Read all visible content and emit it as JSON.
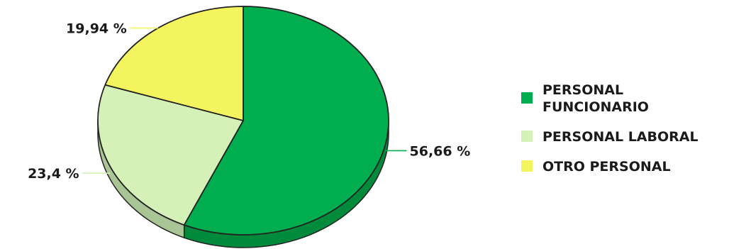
{
  "chart_data": {
    "type": "pie",
    "title": "",
    "style": "3d",
    "legend_position": "right",
    "slices": [
      {
        "label": "PERSONAL FUNCIONARIO",
        "legend_lines": [
          "PERSONAL",
          "FUNCIONARIO"
        ],
        "value": 56.66,
        "value_label": "56,66 %",
        "color": "#00ad4f",
        "side_color": "#008a3c"
      },
      {
        "label": "PERSONAL LABORAL",
        "legend_lines": [
          "PERSONAL LABORAL"
        ],
        "value": 23.4,
        "value_label": "23,4 %",
        "color": "#d5f1b8",
        "side_color": "#a9c495"
      },
      {
        "label": "OTRO PERSONAL",
        "legend_lines": [
          "OTRO PERSONAL"
        ],
        "value": 19.94,
        "value_label": "19,94 %",
        "color": "#f4f45e",
        "side_color": "#c6c64a"
      }
    ]
  }
}
